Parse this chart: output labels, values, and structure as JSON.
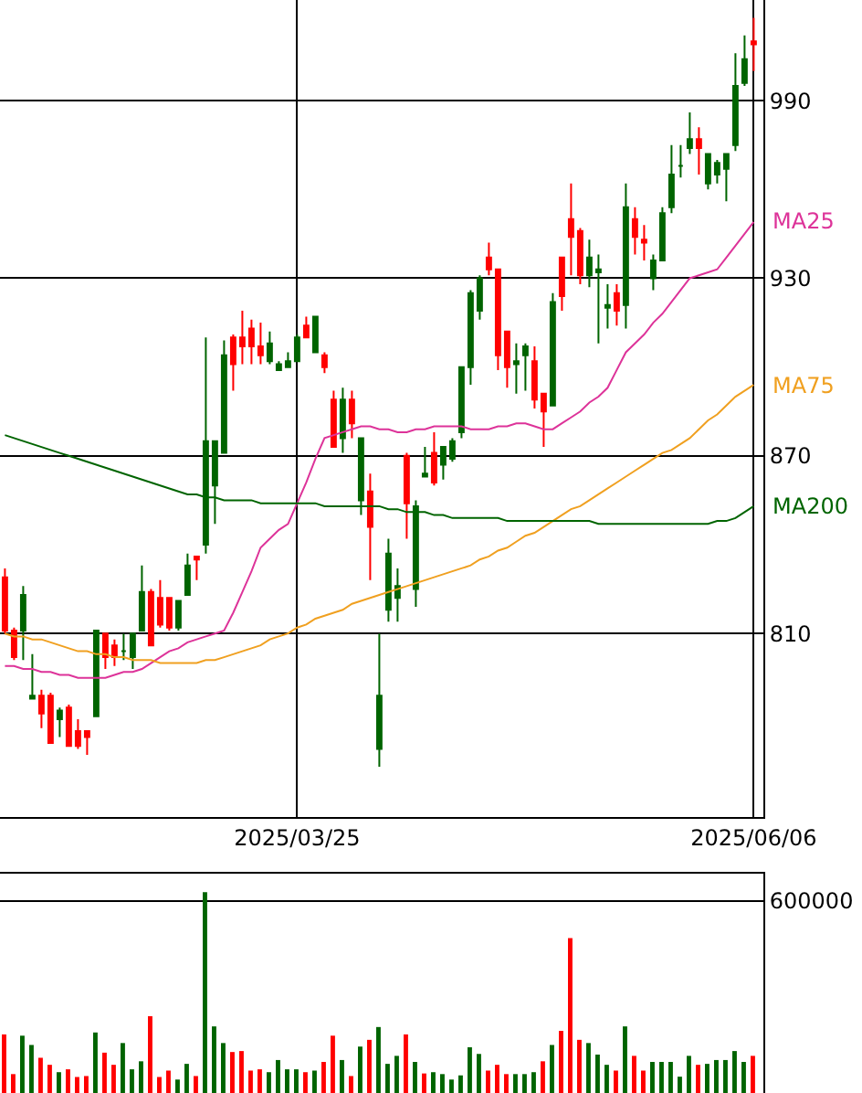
{
  "chart_data": [
    {
      "type": "candlestick",
      "categories": [
        null,
        null,
        null,
        null,
        null,
        null,
        null,
        null,
        null,
        null,
        null,
        null,
        null,
        null,
        null,
        null,
        null,
        null,
        null,
        null,
        null,
        null,
        null,
        null,
        null,
        null,
        null,
        null,
        null,
        null,
        null,
        null,
        "2025/03/25",
        null,
        null,
        null,
        null,
        null,
        null,
        null,
        null,
        null,
        null,
        null,
        null,
        null,
        null,
        null,
        null,
        null,
        null,
        null,
        null,
        null,
        null,
        null,
        null,
        null,
        null,
        null,
        null,
        null,
        null,
        null,
        null,
        null,
        null,
        null,
        null,
        null,
        null,
        null,
        null,
        null,
        null,
        null,
        null,
        null,
        null,
        null,
        null,
        null,
        "2025/06/06"
      ],
      "ohlc": [
        [
          829,
          832,
          810,
          811
        ],
        [
          811,
          812,
          801,
          802
        ],
        [
          811,
          826,
          801,
          823
        ],
        [
          788,
          803,
          788,
          789
        ],
        [
          789,
          791,
          778,
          783
        ],
        [
          789,
          790,
          773,
          773
        ],
        [
          781,
          785,
          775,
          784
        ],
        [
          785,
          786,
          772,
          772
        ],
        [
          777,
          781,
          771,
          772
        ],
        [
          777,
          777,
          769,
          775
        ],
        [
          782,
          811,
          782,
          811
        ],
        [
          810,
          810,
          798,
          802
        ],
        [
          806,
          808,
          799,
          802
        ],
        [
          804,
          810,
          801,
          804
        ],
        [
          802,
          810,
          798,
          810
        ],
        [
          811,
          833,
          811,
          824
        ],
        [
          824,
          825,
          806,
          806
        ],
        [
          822,
          828,
          812,
          813
        ],
        [
          822,
          822,
          811,
          812
        ],
        [
          812,
          821,
          811,
          821
        ],
        [
          823,
          837,
          823,
          833
        ],
        [
          836,
          836,
          828,
          835
        ],
        [
          840,
          910,
          837,
          875
        ],
        [
          860,
          875,
          847,
          875
        ],
        [
          871,
          909,
          871,
          904
        ],
        [
          910,
          911,
          892,
          901
        ],
        [
          910,
          919,
          901,
          907
        ],
        [
          913,
          916,
          901,
          907
        ],
        [
          907,
          915,
          901,
          904
        ],
        [
          902,
          912,
          901,
          908
        ],
        [
          899,
          902,
          899,
          901
        ],
        [
          900,
          905,
          900,
          902
        ],
        [
          902,
          911,
          902,
          910
        ],
        [
          914,
          917,
          910,
          910
        ],
        [
          905,
          917,
          905,
          917
        ],
        [
          904,
          905,
          898,
          900
        ],
        [
          889,
          892,
          873,
          873
        ],
        [
          876,
          893,
          871,
          889
        ],
        [
          889,
          892,
          876,
          881
        ],
        [
          855,
          876,
          850,
          876
        ],
        [
          858,
          864,
          828,
          846
        ],
        [
          771,
          810,
          765,
          789
        ],
        [
          818,
          842,
          814,
          837
        ],
        [
          822,
          832,
          814,
          826
        ],
        [
          870,
          871,
          842,
          854
        ],
        [
          825,
          855,
          819,
          853
        ],
        [
          863,
          873,
          863,
          864
        ],
        [
          871,
          878,
          860,
          861
        ],
        [
          867,
          873,
          862,
          873
        ],
        [
          869,
          876,
          868,
          875
        ],
        [
          878,
          900,
          876,
          900
        ],
        [
          900,
          926,
          894,
          925
        ],
        [
          919,
          931,
          916,
          930
        ],
        [
          937,
          942,
          931,
          933
        ],
        [
          933,
          933,
          899,
          904
        ],
        [
          912,
          912,
          893,
          900
        ],
        [
          901,
          908,
          891,
          902
        ],
        [
          904,
          908,
          892,
          907
        ],
        [
          902,
          907,
          886,
          889
        ],
        [
          891,
          891,
          873,
          885
        ],
        [
          887,
          925,
          887,
          922
        ],
        [
          937,
          937,
          919,
          924
        ],
        [
          950,
          962,
          931,
          944
        ],
        [
          946,
          947,
          928,
          931
        ],
        [
          931,
          943,
          927,
          937
        ],
        [
          932,
          938,
          908,
          933
        ],
        [
          920,
          928,
          913,
          921
        ],
        [
          925,
          928,
          914,
          919
        ],
        [
          921,
          962,
          913,
          954
        ],
        [
          950,
          954,
          938,
          944
        ],
        [
          943,
          948,
          936,
          942
        ],
        [
          930,
          938,
          926,
          936
        ],
        [
          936,
          954,
          936,
          952
        ],
        [
          954,
          975,
          952,
          965
        ],
        [
          968,
          975,
          964,
          968
        ],
        [
          974,
          986,
          972,
          977
        ],
        [
          977,
          981,
          965,
          974
        ],
        [
          962,
          972,
          960,
          972
        ],
        [
          965,
          970,
          962,
          969
        ],
        [
          967,
          972,
          956,
          972
        ],
        [
          975,
          1006,
          973,
          995
        ],
        [
          996,
          1012,
          995,
          1004
        ],
        [
          1010,
          1018,
          1000,
          1009
        ]
      ],
      "colors": [
        "#ff0000",
        "#ff0000",
        "#006400",
        "#006400",
        "#ff0000",
        "#ff0000",
        "#006400",
        "#ff0000",
        "#ff0000",
        "#ff0000",
        "#006400",
        "#ff0000",
        "#ff0000",
        "#006400",
        "#006400",
        "#006400",
        "#ff0000",
        "#ff0000",
        "#ff0000",
        "#006400",
        "#006400",
        "#ff0000",
        "#006400",
        "#006400",
        "#006400",
        "#ff0000",
        "#ff0000",
        "#ff0000",
        "#ff0000",
        "#006400",
        "#006400",
        "#006400",
        "#006400",
        "#ff0000",
        "#006400",
        "#ff0000",
        "#ff0000",
        "#006400",
        "#ff0000",
        "#006400",
        "#ff0000",
        "#006400",
        "#006400",
        "#006400",
        "#ff0000",
        "#006400",
        "#006400",
        "#ff0000",
        "#006400",
        "#006400",
        "#006400",
        "#006400",
        "#006400",
        "#ff0000",
        "#ff0000",
        "#ff0000",
        "#006400",
        "#006400",
        "#ff0000",
        "#ff0000",
        "#006400",
        "#ff0000",
        "#ff0000",
        "#ff0000",
        "#006400",
        "#006400",
        "#006400",
        "#ff0000",
        "#006400",
        "#ff0000",
        "#ff0000",
        "#006400",
        "#006400",
        "#006400",
        "#006400",
        "#006400",
        "#ff0000",
        "#006400",
        "#006400",
        "#006400",
        "#006400",
        "#006400",
        "#ff0000"
      ],
      "series": [
        {
          "type": "line",
          "name": "MA25",
          "color": "#dd3399",
          "values": [
            799,
            799,
            798,
            798,
            797,
            797,
            796,
            796,
            795,
            795,
            795,
            795,
            796,
            797,
            797,
            798,
            800,
            802,
            804,
            805,
            807,
            808,
            809,
            810,
            811,
            817,
            824,
            831,
            839,
            842,
            845,
            847,
            854,
            861,
            869,
            876,
            877,
            878,
            879,
            880,
            880,
            879,
            879,
            878,
            878,
            879,
            879,
            880,
            880,
            880,
            880,
            879,
            879,
            879,
            880,
            880,
            881,
            881,
            880,
            879,
            879,
            881,
            883,
            885,
            888,
            890,
            893,
            899,
            905,
            908,
            911,
            915,
            918,
            922,
            926,
            930,
            931,
            932,
            933,
            937,
            941,
            945,
            949
          ]
        },
        {
          "type": "line",
          "name": "MA75",
          "color": "#f0a020",
          "values": [
            810,
            809,
            809,
            808,
            808,
            807,
            806,
            805,
            804,
            804,
            803,
            803,
            802,
            802,
            801,
            801,
            801,
            800,
            800,
            800,
            800,
            800,
            801,
            801,
            802,
            803,
            804,
            805,
            806,
            808,
            809,
            810,
            812,
            813,
            815,
            816,
            817,
            818,
            820,
            821,
            822,
            823,
            824,
            825,
            826,
            827,
            828,
            829,
            830,
            831,
            832,
            833,
            835,
            836,
            838,
            839,
            841,
            843,
            844,
            846,
            848,
            850,
            852,
            853,
            855,
            857,
            859,
            861,
            863,
            865,
            867,
            869,
            871,
            872,
            874,
            876,
            879,
            882,
            884,
            887,
            890,
            892,
            894
          ]
        },
        {
          "type": "line",
          "name": "MA200",
          "color": "#006400",
          "values": [
            877,
            876,
            875,
            874,
            873,
            872,
            871,
            870,
            869,
            868,
            867,
            866,
            865,
            864,
            863,
            862,
            861,
            860,
            859,
            858,
            857,
            857,
            856,
            856,
            855,
            855,
            855,
            855,
            854,
            854,
            854,
            854,
            854,
            854,
            854,
            853,
            853,
            853,
            853,
            853,
            853,
            853,
            852,
            852,
            851,
            851,
            851,
            850,
            850,
            849,
            849,
            849,
            849,
            849,
            849,
            848,
            848,
            848,
            848,
            848,
            848,
            848,
            848,
            848,
            848,
            847,
            847,
            847,
            847,
            847,
            847,
            847,
            847,
            847,
            847,
            847,
            847,
            847,
            848,
            848,
            849,
            851,
            853
          ]
        }
      ],
      "ylim": [
        748,
        1024
      ],
      "yticks": [
        810,
        870,
        930,
        990
      ],
      "grid": true
    },
    {
      "type": "bar",
      "categories": [
        null,
        null,
        null,
        null,
        null,
        null,
        null,
        null,
        null,
        null,
        null,
        null,
        null,
        null,
        null,
        null,
        null,
        null,
        null,
        null,
        null,
        null,
        null,
        null,
        null,
        null,
        null,
        null,
        null,
        null,
        null,
        null,
        "2025/03/25",
        null,
        null,
        null,
        null,
        null,
        null,
        null,
        null,
        null,
        null,
        null,
        null,
        null,
        null,
        null,
        null,
        null,
        null,
        null,
        null,
        null,
        null,
        null,
        null,
        null,
        null,
        null,
        null,
        null,
        null,
        null,
        null,
        null,
        null,
        null,
        null,
        null,
        null,
        null,
        null,
        null,
        null,
        null,
        null,
        null,
        null,
        null,
        null,
        null,
        "2025/06/06"
      ],
      "values": [
        183000,
        59000,
        179000,
        150000,
        110000,
        88000,
        65000,
        74000,
        50000,
        53000,
        189000,
        126000,
        88000,
        156000,
        74000,
        99000,
        240000,
        50000,
        70000,
        42000,
        91000,
        53000,
        627000,
        208000,
        156000,
        128000,
        131000,
        70000,
        74000,
        65000,
        103000,
        74000,
        74000,
        65000,
        70000,
        97000,
        179000,
        103000,
        53000,
        145000,
        166000,
        206000,
        91000,
        116000,
        183000,
        97000,
        61000,
        65000,
        59000,
        42000,
        55000,
        143000,
        122000,
        70000,
        88000,
        59000,
        59000,
        59000,
        65000,
        99000,
        150000,
        194000,
        484000,
        166000,
        156000,
        120000,
        88000,
        70000,
        208000,
        116000,
        70000,
        97000,
        97000,
        97000,
        51000,
        116000,
        88000,
        91000,
        103000,
        103000,
        131000,
        97000,
        116000
      ],
      "colors": [
        "#ff0000",
        "#ff0000",
        "#006400",
        "#006400",
        "#ff0000",
        "#ff0000",
        "#006400",
        "#ff0000",
        "#ff0000",
        "#ff0000",
        "#006400",
        "#ff0000",
        "#ff0000",
        "#006400",
        "#006400",
        "#006400",
        "#ff0000",
        "#ff0000",
        "#ff0000",
        "#006400",
        "#006400",
        "#ff0000",
        "#006400",
        "#006400",
        "#006400",
        "#ff0000",
        "#ff0000",
        "#ff0000",
        "#ff0000",
        "#006400",
        "#006400",
        "#006400",
        "#006400",
        "#ff0000",
        "#006400",
        "#ff0000",
        "#ff0000",
        "#006400",
        "#ff0000",
        "#006400",
        "#ff0000",
        "#006400",
        "#006400",
        "#006400",
        "#ff0000",
        "#006400",
        "#ff0000",
        "#006400",
        "#006400",
        "#006400",
        "#006400",
        "#006400",
        "#006400",
        "#ff0000",
        "#ff0000",
        "#ff0000",
        "#006400",
        "#006400",
        "#006400",
        "#ff0000",
        "#006400",
        "#ff0000",
        "#ff0000",
        "#ff0000",
        "#006400",
        "#006400",
        "#006400",
        "#ff0000",
        "#006400",
        "#ff0000",
        "#ff0000",
        "#006400",
        "#006400",
        "#006400",
        "#006400",
        "#006400",
        "#ff0000",
        "#006400",
        "#006400",
        "#006400",
        "#006400",
        "#006400",
        "#ff0000"
      ],
      "ylim": [
        0,
        685000
      ],
      "yticks": [
        600000
      ],
      "grid": "y",
      "tick_labels": "y"
    }
  ]
}
